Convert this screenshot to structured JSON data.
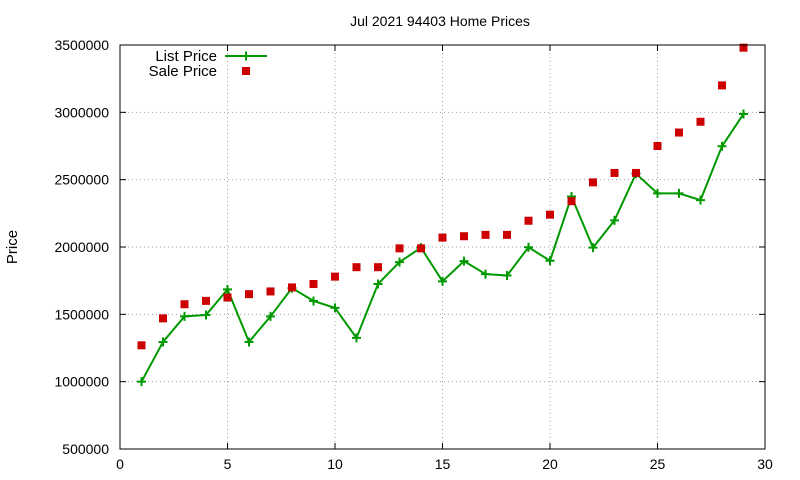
{
  "chart_data": {
    "type": "line",
    "title": "Jul 2021 94403 Home Prices",
    "xlabel": "",
    "ylabel": "Price",
    "xlim": [
      0,
      30
    ],
    "ylim": [
      500000,
      3500000
    ],
    "xticks": [
      "0",
      "5",
      "10",
      "15",
      "20",
      "25",
      "30"
    ],
    "yticks": [
      "500000",
      "1000000",
      "1500000",
      "2000000",
      "2500000",
      "3000000",
      "3500000"
    ],
    "grid": true,
    "legend_position": "top-left",
    "series": [
      {
        "name": "List Price",
        "style": "line-plus",
        "color": "#009900",
        "x": [
          1,
          2,
          3,
          4,
          5,
          6,
          7,
          8,
          9,
          10,
          11,
          12,
          13,
          14,
          15,
          16,
          17,
          18,
          19,
          20,
          21,
          22,
          23,
          24,
          25,
          26,
          27,
          28,
          29
        ],
        "values": [
          1000000,
          1295000,
          1485000,
          1495000,
          1685000,
          1295000,
          1485000,
          1695000,
          1599000,
          1548000,
          1325000,
          1725000,
          1888000,
          1995000,
          1745000,
          1895000,
          1799000,
          1788000,
          1998000,
          1898000,
          2375000,
          1995000,
          2198000,
          2545000,
          2398000,
          2398000,
          2348000,
          2748000,
          2988000
        ]
      },
      {
        "name": "Sale Price",
        "style": "square",
        "color": "#cc0000",
        "x": [
          1,
          2,
          3,
          4,
          5,
          6,
          7,
          8,
          9,
          10,
          11,
          12,
          13,
          14,
          15,
          16,
          17,
          18,
          19,
          20,
          21,
          22,
          23,
          24,
          25,
          26,
          27,
          28,
          29
        ],
        "values": [
          1270000,
          1470000,
          1575000,
          1600000,
          1625000,
          1650000,
          1670000,
          1700000,
          1725000,
          1780000,
          1850000,
          1850000,
          1990000,
          1990000,
          2070000,
          2080000,
          2090000,
          2090000,
          2195000,
          2240000,
          2340000,
          2480000,
          2550000,
          2550000,
          2750000,
          2850000,
          2930000,
          3200000,
          3480000
        ]
      }
    ]
  }
}
